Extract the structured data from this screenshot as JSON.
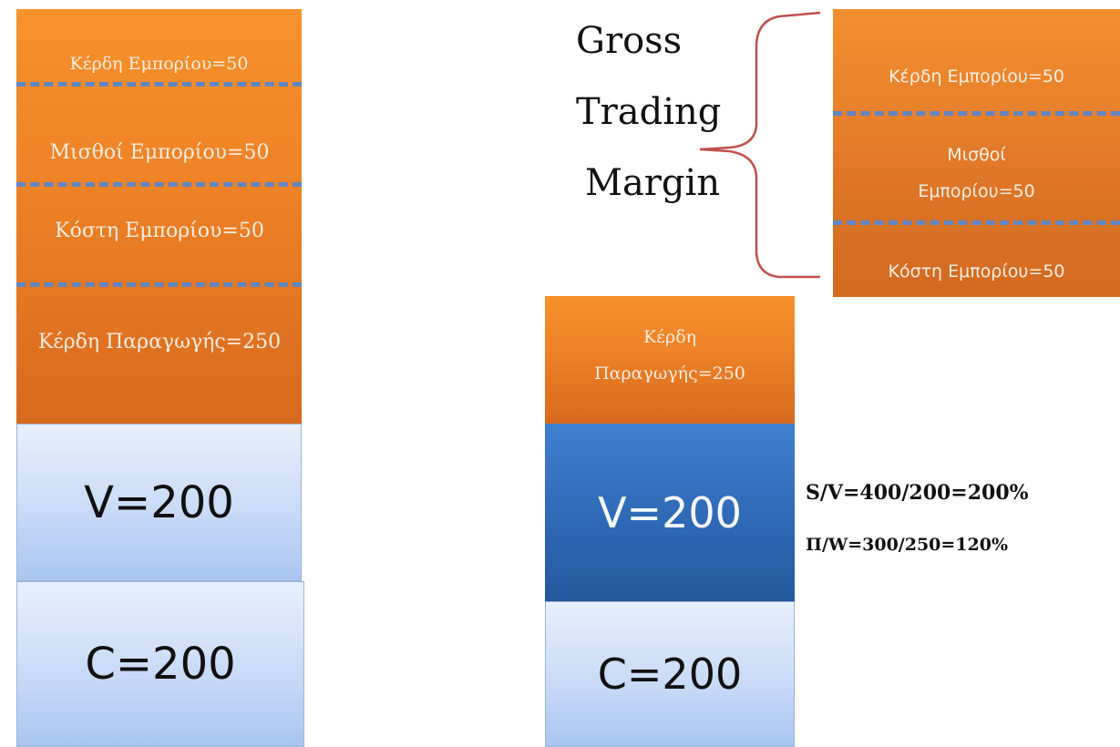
{
  "left_stack": {
    "merchant_profit": "Κέρδη Εμπορίου=50",
    "merchant_wages": "Μισθοί Εμπορίου=50",
    "merchant_costs": "Κόστη Εμπορίου=50",
    "production_profit": "Κέρδη Παραγωγής=250",
    "variable_capital": "V=200",
    "constant_capital": "C=200"
  },
  "bracket_label": {
    "line1": "Gross",
    "line2": "Trading",
    "line3": "Margin"
  },
  "right_top_box": {
    "merchant_profit": "Κέρδη Εμπορίου=50",
    "merchant_wages_1": "Μισθοί",
    "merchant_wages_2": "Εμπορίου=50",
    "merchant_costs": "Κόστη Εμπορίου=50"
  },
  "right_stack": {
    "production_profit_1": "Κέρδη",
    "production_profit_2": "Παραγωγής=250",
    "variable_capital": "V=200",
    "constant_capital": "C=200"
  },
  "ratios": {
    "surplus_rate": "S/V=400/200=200%",
    "profit_rate": "Π/W=300/250=120%"
  },
  "colors": {
    "orange": "#ee8327",
    "dark_blue": "#2f69b5",
    "light_blue": "#c9dbf7",
    "dash_blue": "#5f86c4",
    "bracket": "#c0504d"
  }
}
